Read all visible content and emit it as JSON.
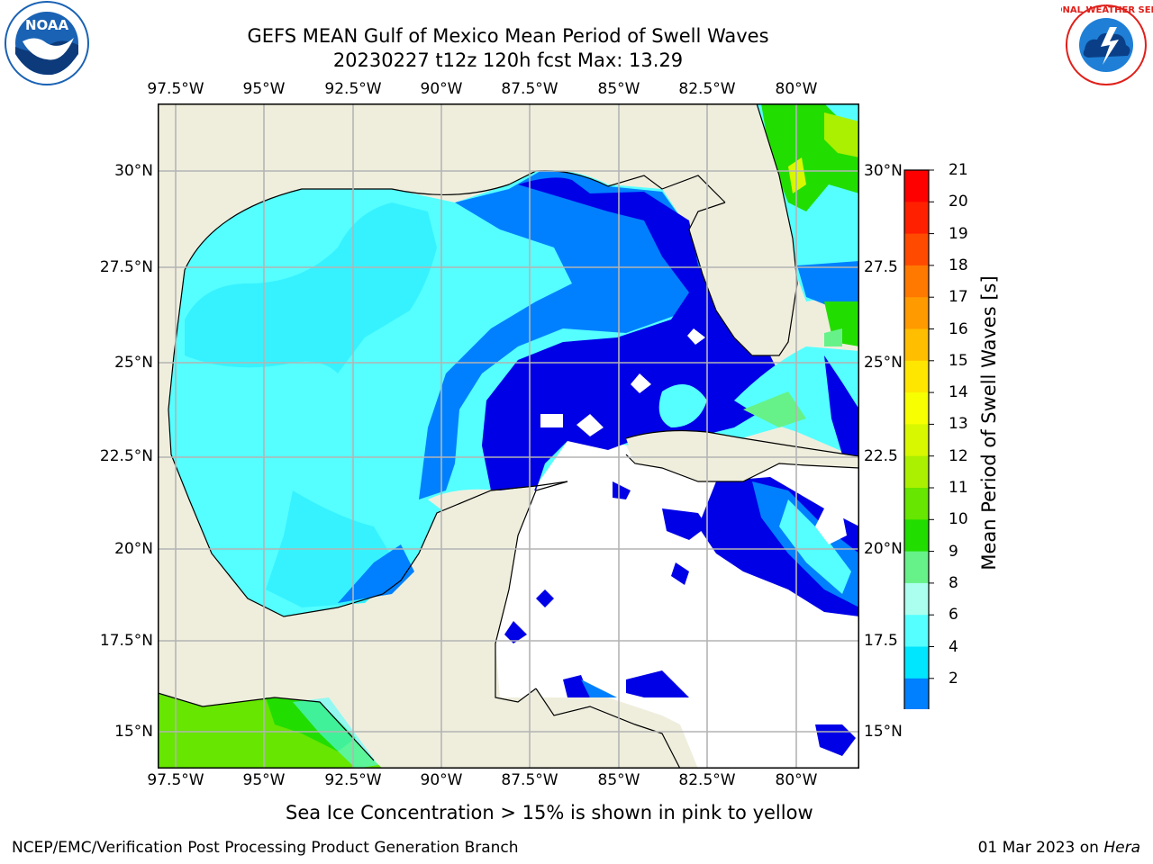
{
  "header": {
    "title_line1": "GEFS MEAN Gulf of Mexico Mean Period of Swell Waves",
    "title_line2": "20230227 t12z 120h fcst   Max: 13.29"
  },
  "logos": {
    "left": {
      "text": "NOAA",
      "colors": {
        "blue": "#1a62b4",
        "dark": "#0c3a7a"
      }
    },
    "right": {
      "text": "NATIONAL WEATHER SERVICE",
      "colors": {
        "red": "#e0201a",
        "blue": "#1f7fd6"
      }
    }
  },
  "map": {
    "lon_ticks": [
      "97.5°W",
      "95°W",
      "92.5°W",
      "90°W",
      "87.5°W",
      "85°W",
      "82.5°W",
      "80°W"
    ],
    "lat_ticks_left": [
      "30°N",
      "27.5°N",
      "25°N",
      "22.5°N",
      "20°N",
      "17.5°N",
      "15°N"
    ],
    "lat_ticks_right": [
      "30°N",
      "27.5",
      "25°N",
      "22.5",
      "20°N",
      "17.5",
      "15°N"
    ],
    "land_color": "#efeedd",
    "grid_color": "#b4b4b4"
  },
  "colorbar": {
    "title": "Mean Period of Swell Waves [s]",
    "labels": [
      "21",
      "20",
      "19",
      "18",
      "17",
      "16",
      "15",
      "14",
      "13",
      "12",
      "11",
      "10",
      "9",
      "8",
      "6",
      "4",
      "2"
    ],
    "colors": [
      "#ff0000",
      "#ff2000",
      "#ff4a00",
      "#ff7800",
      "#ff9a00",
      "#ffbe00",
      "#ffe600",
      "#f8ff00",
      "#d8f800",
      "#aaf000",
      "#66e600",
      "#22dd00",
      "#66f288",
      "#aaffee",
      "#55ffff",
      "#00e6ff",
      "#0080ff"
    ],
    "extend_color": "#0000e6"
  },
  "footer": {
    "note": "Sea Ice Concentration > 15% is shown in pink to yellow",
    "left": "NCEP/EMC/Verification Post Processing Product Generation Branch",
    "right_date": "01 Mar 2023 on ",
    "right_host": "Hera"
  }
}
